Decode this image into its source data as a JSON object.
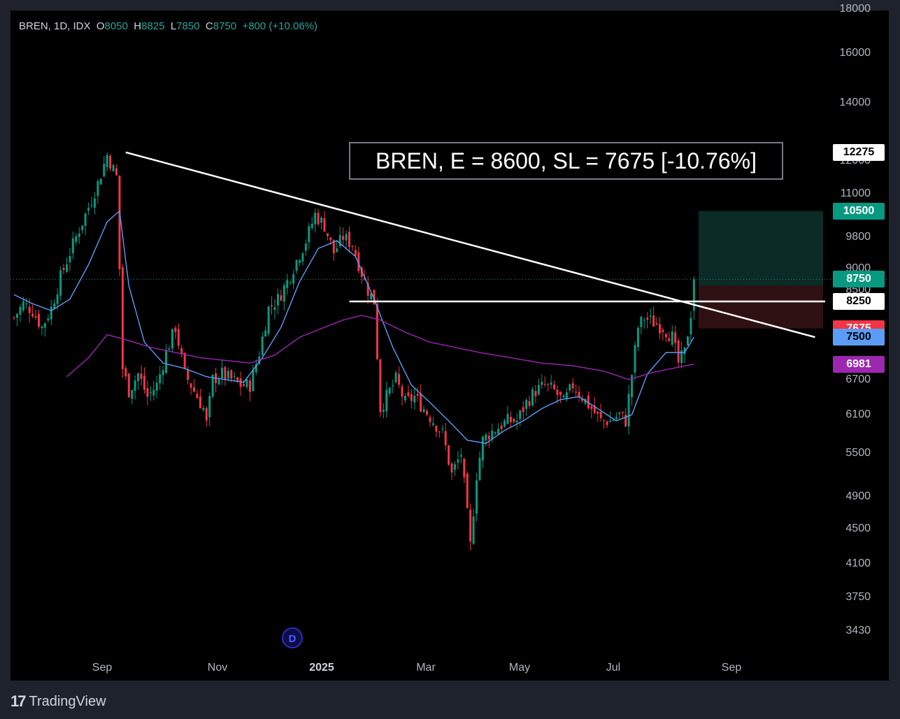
{
  "legend": {
    "symbol": "BREN, 1D, IDX",
    "open_label": "O",
    "open": "8050",
    "high_label": "H",
    "high": "8825",
    "low_label": "L",
    "low": "7850",
    "close_label": "C",
    "close": "8750",
    "change": "+800 (+10.06%)"
  },
  "annotation": "BREN, E = 8600, SL = 7675 [-10.76%]",
  "watermark_button": "D",
  "brand": {
    "name": "TradingView"
  },
  "price_tags": [
    {
      "label": "12275",
      "bg": "#ffffff",
      "fg": "#000000",
      "price": 12275
    },
    {
      "label": "10500",
      "bg": "#089981",
      "fg": "#ffffff",
      "price": 10500
    },
    {
      "label": "8750",
      "bg": "#089981",
      "fg": "#ffffff",
      "price": 8750
    },
    {
      "label": "8250",
      "bg": "#ffffff",
      "fg": "#000000",
      "price": 8250
    },
    {
      "label": "7675",
      "bg": "#f23645",
      "fg": "#ffffff",
      "price": 7675
    },
    {
      "label": "7500",
      "bg": "#5b9cf6",
      "fg": "#000000",
      "price": 7500
    },
    {
      "label": "6981",
      "bg": "#9c27b0",
      "fg": "#ffffff",
      "price": 6981
    }
  ],
  "colors": {
    "up": "#089981",
    "down": "#f23645",
    "ma_fast": "#5b9cf6",
    "ma_slow": "#9c27b0",
    "trendline": "#ffffff",
    "target_zone": "#0c2b26",
    "stop_zone": "#2f1114"
  },
  "chart_data": {
    "type": "candlestick",
    "symbol": "BREN",
    "interval": "1D",
    "exchange": "IDX",
    "y_scale": "log",
    "ylim": [
      3300,
      18000
    ],
    "y_ticks": [
      18000,
      16000,
      14000,
      12000,
      11000,
      9800,
      9000,
      8500,
      6700,
      6100,
      5500,
      4900,
      4500,
      4100,
      3750,
      3430
    ],
    "y_tick_labels": [
      "18000",
      "16000",
      "14000",
      "12000",
      "11000",
      "9800",
      "9000",
      "8500",
      "6700",
      "6100",
      "5500",
      "4900",
      "4500",
      "4100",
      "3750",
      "3430"
    ],
    "x_ticks": [
      "Sep",
      "Nov",
      "2025",
      "Mar",
      "May",
      "Jul",
      "Sep"
    ],
    "last_bar": {
      "open": 8050,
      "high": 8825,
      "low": 7850,
      "close": 8750,
      "change": 800,
      "change_pct": 10.06
    },
    "price_path": [
      [
        0,
        7900
      ],
      [
        3,
        8200
      ],
      [
        6,
        8050
      ],
      [
        9,
        7700
      ],
      [
        12,
        8100
      ],
      [
        15,
        8800
      ],
      [
        18,
        9400
      ],
      [
        21,
        10000
      ],
      [
        24,
        10600
      ],
      [
        27,
        11300
      ],
      [
        30,
        12200
      ],
      [
        33,
        11500
      ],
      [
        34,
        9000
      ],
      [
        35,
        6900
      ],
      [
        37,
        6500
      ],
      [
        40,
        6800
      ],
      [
        43,
        6400
      ],
      [
        46,
        6600
      ],
      [
        49,
        7200
      ],
      [
        52,
        7700
      ],
      [
        55,
        6800
      ],
      [
        58,
        6500
      ],
      [
        61,
        6200
      ],
      [
        62,
        5950
      ],
      [
        64,
        6700
      ],
      [
        67,
        6800
      ],
      [
        70,
        6700
      ],
      [
        73,
        6600
      ],
      [
        76,
        6600
      ],
      [
        79,
        7200
      ],
      [
        82,
        8100
      ],
      [
        85,
        8300
      ],
      [
        88,
        8700
      ],
      [
        91,
        9200
      ],
      [
        94,
        9700
      ],
      [
        97,
        10400
      ],
      [
        100,
        10100
      ],
      [
        103,
        9400
      ],
      [
        106,
        9800
      ],
      [
        109,
        9600
      ],
      [
        112,
        8900
      ],
      [
        114,
        8500
      ],
      [
        116,
        8250
      ],
      [
        118,
        6200
      ],
      [
        120,
        6400
      ],
      [
        123,
        6700
      ],
      [
        126,
        6300
      ],
      [
        129,
        6400
      ],
      [
        132,
        6200
      ],
      [
        135,
        6000
      ],
      [
        138,
        5800
      ],
      [
        141,
        5200
      ],
      [
        144,
        5500
      ],
      [
        147,
        4300
      ],
      [
        149,
        5200
      ],
      [
        151,
        5700
      ],
      [
        153,
        5800
      ],
      [
        156,
        5900
      ],
      [
        159,
        6000
      ],
      [
        162,
        6000
      ],
      [
        165,
        6300
      ],
      [
        168,
        6500
      ],
      [
        171,
        6600
      ],
      [
        174,
        6500
      ],
      [
        177,
        6300
      ],
      [
        180,
        6600
      ],
      [
        183,
        6400
      ],
      [
        186,
        6200
      ],
      [
        189,
        6000
      ],
      [
        192,
        6000
      ],
      [
        195,
        6100
      ],
      [
        197,
        6000
      ],
      [
        199,
        6800
      ],
      [
        201,
        7700
      ],
      [
        203,
        7900
      ],
      [
        206,
        7800
      ],
      [
        209,
        7700
      ],
      [
        212,
        7500
      ],
      [
        214,
        7000
      ],
      [
        216,
        7200
      ],
      [
        218,
        8000
      ],
      [
        219,
        8750
      ]
    ],
    "moving_averages": [
      {
        "name": "fast",
        "current": 7500,
        "path": [
          [
            0,
            8400
          ],
          [
            6,
            8200
          ],
          [
            12,
            8050
          ],
          [
            18,
            8300
          ],
          [
            24,
            9100
          ],
          [
            30,
            10200
          ],
          [
            34,
            10500
          ],
          [
            37,
            8600
          ],
          [
            42,
            7400
          ],
          [
            48,
            7000
          ],
          [
            55,
            6900
          ],
          [
            62,
            6750
          ],
          [
            68,
            6700
          ],
          [
            74,
            6650
          ],
          [
            80,
            7100
          ],
          [
            86,
            7700
          ],
          [
            92,
            8700
          ],
          [
            98,
            9500
          ],
          [
            104,
            9700
          ],
          [
            110,
            9300
          ],
          [
            116,
            8300
          ],
          [
            122,
            7300
          ],
          [
            128,
            6600
          ],
          [
            134,
            6300
          ],
          [
            140,
            6000
          ],
          [
            146,
            5700
          ],
          [
            152,
            5650
          ],
          [
            158,
            5850
          ],
          [
            164,
            6000
          ],
          [
            170,
            6200
          ],
          [
            176,
            6350
          ],
          [
            182,
            6400
          ],
          [
            188,
            6200
          ],
          [
            194,
            6000
          ],
          [
            199,
            6100
          ],
          [
            204,
            6800
          ],
          [
            210,
            7200
          ],
          [
            216,
            7200
          ],
          [
            219,
            7500
          ]
        ]
      },
      {
        "name": "slow",
        "current": 6981,
        "path": [
          [
            17,
            6750
          ],
          [
            24,
            7100
          ],
          [
            30,
            7550
          ],
          [
            36,
            7450
          ],
          [
            44,
            7300
          ],
          [
            52,
            7200
          ],
          [
            60,
            7100
          ],
          [
            68,
            7050
          ],
          [
            76,
            7000
          ],
          [
            84,
            7150
          ],
          [
            92,
            7500
          ],
          [
            100,
            7700
          ],
          [
            106,
            7850
          ],
          [
            112,
            7950
          ],
          [
            118,
            7850
          ],
          [
            126,
            7600
          ],
          [
            134,
            7400
          ],
          [
            142,
            7300
          ],
          [
            150,
            7200
          ],
          [
            160,
            7100
          ],
          [
            170,
            7000
          ],
          [
            180,
            6950
          ],
          [
            190,
            6850
          ],
          [
            198,
            6700
          ],
          [
            206,
            6830
          ],
          [
            212,
            6900
          ],
          [
            219,
            6981
          ]
        ]
      }
    ],
    "trendline": {
      "from": [
        36,
        12275
      ],
      "to": [
        258,
        7500
      ]
    },
    "horizontal_level": {
      "price": 8250,
      "from_bar": 108
    },
    "position": {
      "entry": 8600,
      "stop_loss": 7675,
      "target": 10500,
      "stop_pct": -10.76
    },
    "grid": false,
    "legend_position": "top-left"
  }
}
